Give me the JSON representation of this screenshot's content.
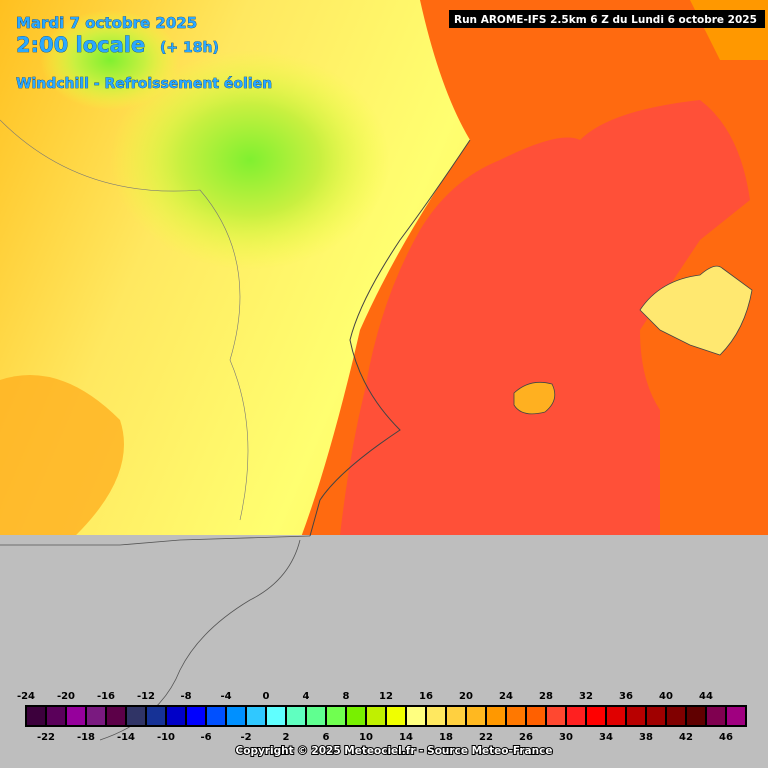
{
  "header": {
    "date": "Mardi 7 octobre 2025",
    "time": "2:00 locale",
    "offset": "(+ 18h)",
    "parameter": "Windchill - Refroissement éolien",
    "run": "Run AROME-IFS 2.5km 6 Z du Lundi 6 octobre 2025"
  },
  "legend": {
    "ticks": [
      -24,
      -22,
      -20,
      -18,
      -16,
      -14,
      -12,
      -10,
      -8,
      -6,
      -4,
      -2,
      0,
      2,
      4,
      6,
      8,
      10,
      12,
      14,
      16,
      18,
      20,
      22,
      24,
      26,
      28,
      30,
      32,
      34,
      36,
      38,
      40,
      42,
      44,
      46
    ],
    "colors": [
      "#3c003c",
      "#5a005a",
      "#96009c",
      "#7a1a80",
      "#5c0048",
      "#303466",
      "#163296",
      "#0000c8",
      "#0000ff",
      "#0050ff",
      "#0090ff",
      "#30c8ff",
      "#60ffff",
      "#60ffc0",
      "#60ff90",
      "#70ff50",
      "#78f000",
      "#c0f000",
      "#f0ff00",
      "#ffff80",
      "#ffe860",
      "#ffd040",
      "#ffb820",
      "#ff9800",
      "#ff7800",
      "#ff6000",
      "#ff4830",
      "#ff2020",
      "#ff0000",
      "#e00000",
      "#b80000",
      "#a00000",
      "#800000",
      "#600000",
      "#800050",
      "#a00080"
    ]
  },
  "footer": {
    "copyright": "Copyright © 2025 Meteociel.fr - Source Meteo-France"
  }
}
